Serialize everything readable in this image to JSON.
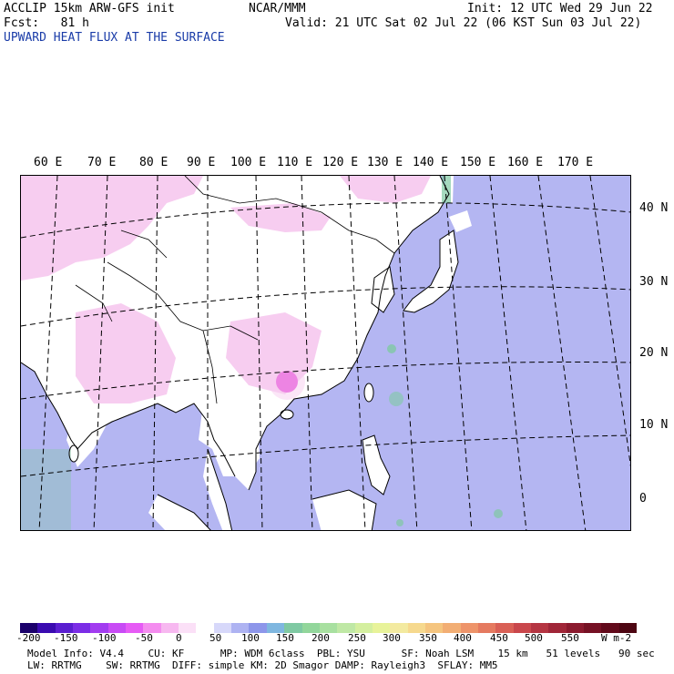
{
  "header": {
    "model_line": "ACCLIP 15km ARW-GFS init",
    "org": "NCAR/MMM",
    "init_line": "Init: 12 UTC Wed 29 Jun 22",
    "fcst_line": "Fcst:   81 h",
    "valid_line": "Valid: 21 UTC Sat 02 Jul 22 (06 KST Sun 03 Jul 22)",
    "field_title": "UPWARD HEAT FLUX AT THE SURFACE",
    "field_color": "#1a3ca8"
  },
  "map": {
    "lon_labels": [
      "60 E",
      "70 E",
      "80 E",
      "90 E",
      "100 E",
      "110 E",
      "120 E",
      "130 E",
      "140 E",
      "150 E",
      "160 E",
      "170 E"
    ],
    "lat_labels": [
      "40 N",
      "30 N",
      "20 N",
      "10 N",
      "0"
    ],
    "colors": {
      "ocean": "#b4b6f2",
      "land": "#ffffff",
      "land_pink": "#f7cdf0",
      "hot": "#e23bd6",
      "cool": "#7fc9a3"
    }
  },
  "colorbar": {
    "tick_labels": [
      "-200",
      "-150",
      "-100",
      "-50",
      "0",
      "50",
      "100",
      "150",
      "200",
      "250",
      "300",
      "350",
      "400",
      "450",
      "500",
      "550"
    ],
    "unit": "W m-2",
    "colors": [
      "#1a006b",
      "#3a0bb0",
      "#5a1ed0",
      "#7b2de6",
      "#a23cf0",
      "#c84bf5",
      "#e65bf5",
      "#f48cef",
      "#f7b8f0",
      "#fbe0f7",
      "#ffffff",
      "#d7d8fa",
      "#aeb3f2",
      "#8d96ea",
      "#7fb7e0",
      "#7fc9a3",
      "#92d69b",
      "#a8e0a0",
      "#bfe8a5",
      "#d4ef9f",
      "#e8f39a",
      "#f3eaa0",
      "#f6d98e",
      "#f5c57f",
      "#f2ae74",
      "#ee946a",
      "#e57a60",
      "#d96056",
      "#c9474c",
      "#b53542",
      "#a02638",
      "#8b1a2e",
      "#761124",
      "#620a1b",
      "#4d0512"
    ]
  },
  "footer": {
    "line1": "Model Info: V4.4    CU: KF      MP: WDM 6class  PBL: YSU      SF: Noah LSM    15 km   51 levels   90 sec",
    "line2": "LW: RRTMG    SW: RRTMG  DIFF: simple KM: 2D Smagor DAMP: Rayleigh3  SFLAY: MM5"
  }
}
